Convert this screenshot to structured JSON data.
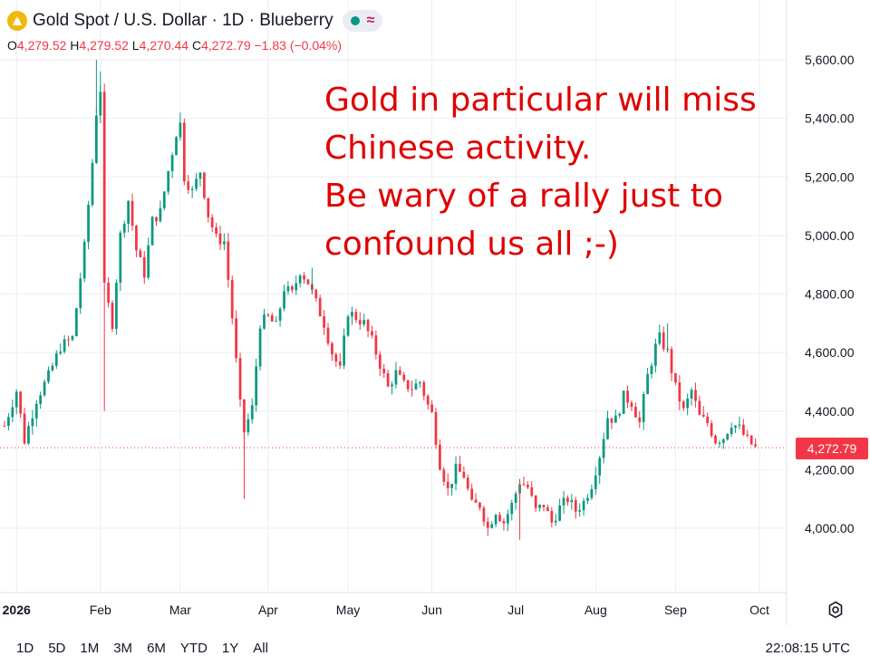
{
  "header": {
    "symbol_title": "Gold Spot / U.S. Dollar · 1D · Blueberry",
    "wave_icon": "≈",
    "ohlc": {
      "o_label": "O",
      "o": "4,279.52",
      "h_label": "H",
      "h": "4,279.52",
      "l_label": "L",
      "l": "4,270.44",
      "c_label": "C",
      "c": "4,272.79",
      "change": "−1.83 (−0.04%)"
    }
  },
  "annotation": {
    "lines": [
      "Gold in particular will miss",
      "Chinese activity.",
      "Be wary of a rally just to",
      "confound us all ;-)"
    ],
    "color": "#e00000"
  },
  "price_axis": {
    "labels": [
      "5,600.00",
      "5,400.00",
      "5,200.00",
      "5,000.00",
      "4,800.00",
      "4,600.00",
      "4,400.00",
      "4,200.00",
      "4,000.00"
    ],
    "last_price": "4,272.79"
  },
  "time_axis": {
    "labels": [
      "2026",
      "Feb",
      "Mar",
      "Apr",
      "May",
      "Jun",
      "Jul",
      "Aug",
      "Sep",
      "Oct"
    ]
  },
  "bottom_bar": {
    "timeframes": [
      "1D",
      "5D",
      "1M",
      "3M",
      "6M",
      "YTD",
      "1Y",
      "All"
    ],
    "clock": "22:08:15 UTC"
  },
  "colors": {
    "up": "#089981",
    "down": "#f23645",
    "grid": "#eceef2",
    "text": "#131722"
  },
  "chart_data": {
    "type": "candlestick",
    "title": "Gold Spot / U.S. Dollar · 1D · Blueberry",
    "ylim": [
      3880,
      5680
    ],
    "y_ticks": [
      4000,
      4200,
      4400,
      4600,
      4800,
      5000,
      5200,
      5400,
      5600
    ],
    "x_ticks": [
      {
        "label": "2026",
        "index": 3
      },
      {
        "label": "Feb",
        "index": 24
      },
      {
        "label": "Mar",
        "index": 44
      },
      {
        "label": "Apr",
        "index": 66
      },
      {
        "label": "May",
        "index": 86
      },
      {
        "label": "Jun",
        "index": 107
      },
      {
        "label": "Jul",
        "index": 128
      },
      {
        "label": "Aug",
        "index": 148
      },
      {
        "label": "Sep",
        "index": 168
      },
      {
        "label": "Oct",
        "index": 189
      }
    ],
    "close_path": [
      [
        0,
        4350
      ],
      [
        3,
        4470
      ],
      [
        5,
        4300
      ],
      [
        8,
        4440
      ],
      [
        11,
        4520
      ],
      [
        14,
        4620
      ],
      [
        17,
        4650
      ],
      [
        20,
        4960
      ],
      [
        22,
        5250
      ],
      [
        23,
        5420
      ],
      [
        24,
        5500
      ],
      [
        25,
        4820
      ],
      [
        27,
        4700
      ],
      [
        29,
        5000
      ],
      [
        31,
        5120
      ],
      [
        33,
        4950
      ],
      [
        35,
        4870
      ],
      [
        37,
        5050
      ],
      [
        39,
        5080
      ],
      [
        41,
        5220
      ],
      [
        43,
        5350
      ],
      [
        44,
        5380
      ],
      [
        45,
        5200
      ],
      [
        47,
        5150
      ],
      [
        49,
        5220
      ],
      [
        51,
        5070
      ],
      [
        53,
        4990
      ],
      [
        55,
        4980
      ],
      [
        57,
        4720
      ],
      [
        59,
        4420
      ],
      [
        60,
        4330
      ],
      [
        62,
        4410
      ],
      [
        64,
        4700
      ],
      [
        66,
        4720
      ],
      [
        68,
        4690
      ],
      [
        70,
        4820
      ],
      [
        72,
        4800
      ],
      [
        74,
        4880
      ],
      [
        76,
        4840
      ],
      [
        78,
        4770
      ],
      [
        80,
        4700
      ],
      [
        82,
        4600
      ],
      [
        84,
        4540
      ],
      [
        86,
        4740
      ],
      [
        88,
        4720
      ],
      [
        90,
        4700
      ],
      [
        92,
        4640
      ],
      [
        94,
        4560
      ],
      [
        96,
        4480
      ],
      [
        98,
        4530
      ],
      [
        100,
        4490
      ],
      [
        102,
        4480
      ],
      [
        104,
        4500
      ],
      [
        106,
        4420
      ],
      [
        107,
        4390
      ],
      [
        109,
        4220
      ],
      [
        111,
        4130
      ],
      [
        113,
        4200
      ],
      [
        115,
        4180
      ],
      [
        117,
        4080
      ],
      [
        119,
        4080
      ],
      [
        121,
        4000
      ],
      [
        123,
        4060
      ],
      [
        125,
        4020
      ],
      [
        127,
        4080
      ],
      [
        129,
        4160
      ],
      [
        131,
        4140
      ],
      [
        133,
        4060
      ],
      [
        135,
        4080
      ],
      [
        137,
        4020
      ],
      [
        139,
        4070
      ],
      [
        141,
        4100
      ],
      [
        143,
        4060
      ],
      [
        145,
        4090
      ],
      [
        147,
        4150
      ],
      [
        149,
        4250
      ],
      [
        151,
        4380
      ],
      [
        153,
        4370
      ],
      [
        155,
        4450
      ],
      [
        157,
        4430
      ],
      [
        159,
        4360
      ],
      [
        161,
        4520
      ],
      [
        163,
        4620
      ],
      [
        164,
        4650
      ],
      [
        166,
        4600
      ],
      [
        168,
        4480
      ],
      [
        170,
        4400
      ],
      [
        172,
        4470
      ],
      [
        174,
        4380
      ],
      [
        176,
        4360
      ],
      [
        178,
        4300
      ],
      [
        180,
        4310
      ],
      [
        182,
        4360
      ],
      [
        184,
        4340
      ],
      [
        186,
        4300
      ],
      [
        188,
        4275
      ]
    ]
  }
}
